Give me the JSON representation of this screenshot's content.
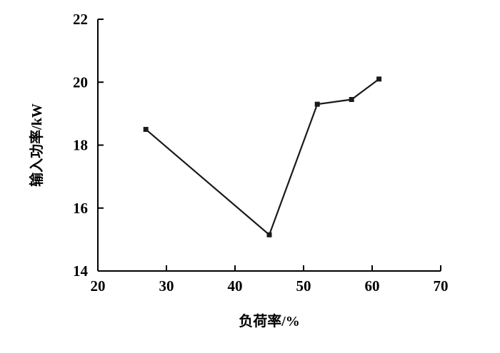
{
  "chart_data": {
    "type": "line",
    "title": "",
    "xlabel": "负荷率/%",
    "ylabel": "输入功率/kW",
    "xlim": [
      20,
      70
    ],
    "ylim": [
      14,
      22
    ],
    "xticks": [
      20,
      30,
      40,
      50,
      60,
      70
    ],
    "yticks": [
      14,
      16,
      18,
      20,
      22
    ],
    "grid": false,
    "legend": "none",
    "series": [
      {
        "name": "input-power",
        "x": [
          27,
          45,
          52,
          57,
          61
        ],
        "y": [
          18.5,
          15.15,
          19.3,
          19.45,
          20.1
        ],
        "color": "#1a1a1a",
        "marker": "square"
      }
    ],
    "colors": {
      "axis": "#000000",
      "line": "#1a1a1a",
      "marker": "#1a1a1a",
      "background": "#ffffff"
    }
  }
}
